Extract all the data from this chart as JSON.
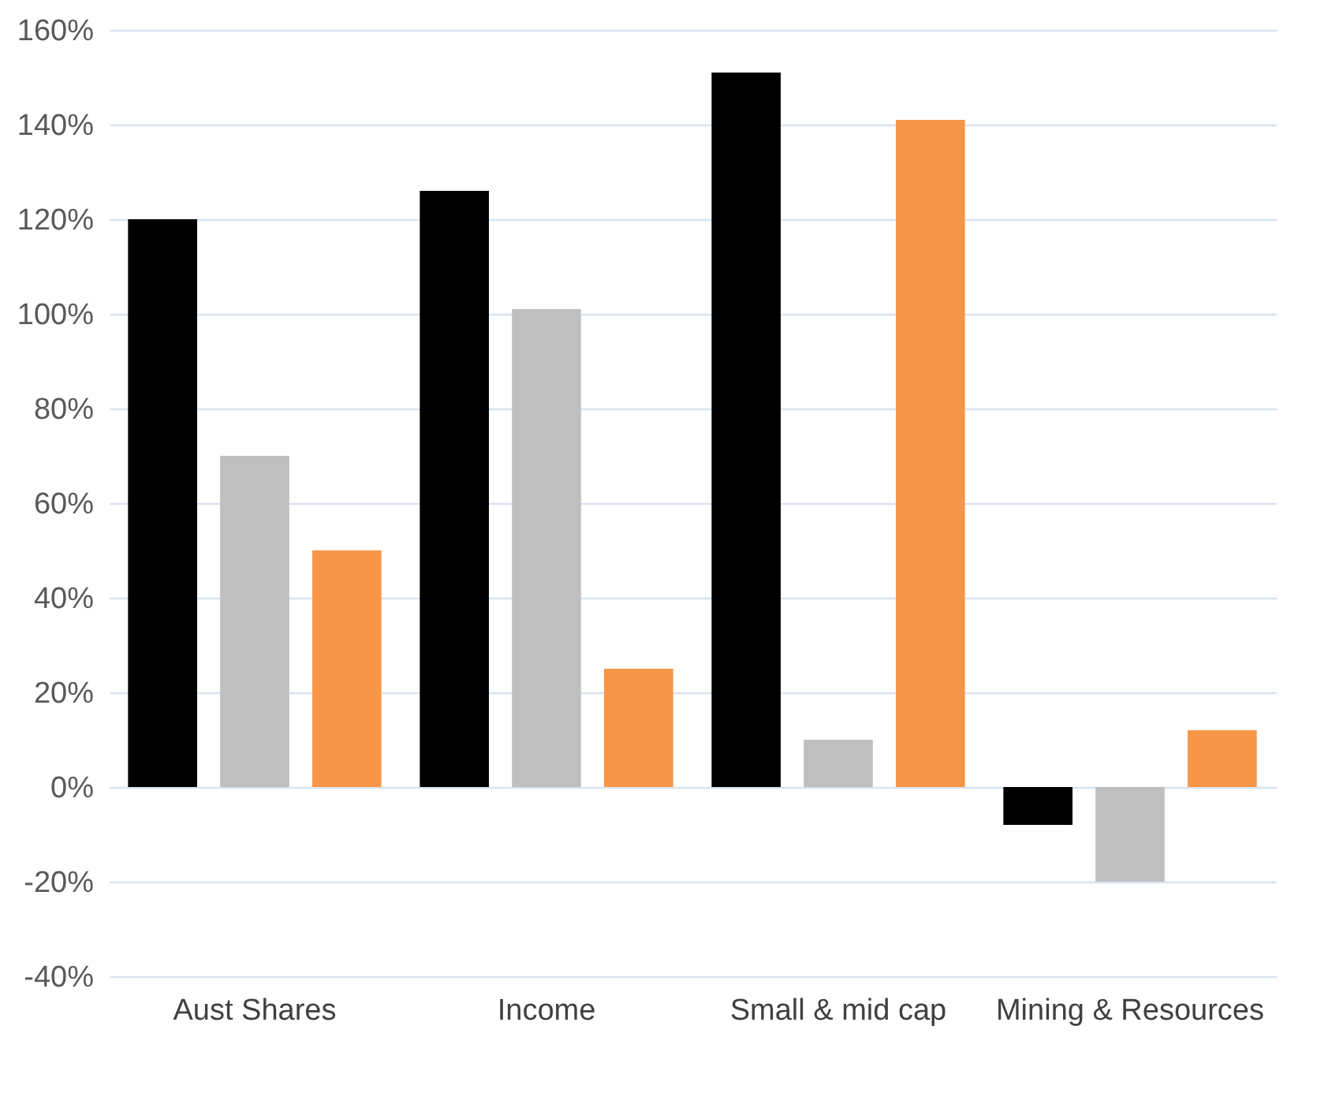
{
  "chart_data": {
    "type": "bar",
    "categories": [
      "Aust Shares",
      "Income",
      "Small & mid cap",
      "Mining & Resources"
    ],
    "series": [
      {
        "color": "#000000",
        "values": [
          120,
          126,
          151,
          -8
        ]
      },
      {
        "color": "#bfbfbf",
        "values": [
          70,
          101,
          10,
          -20
        ]
      },
      {
        "color": "#f79646",
        "values": [
          50,
          25,
          141,
          12
        ]
      }
    ],
    "ylim": [
      -40,
      160
    ],
    "yticks": [
      {
        "value": -40,
        "label": "-40%"
      },
      {
        "value": -20,
        "label": "-20%"
      },
      {
        "value": 0,
        "label": "0%"
      },
      {
        "value": 20,
        "label": "20%"
      },
      {
        "value": 40,
        "label": "40%"
      },
      {
        "value": 60,
        "label": "60%"
      },
      {
        "value": 80,
        "label": "80%"
      },
      {
        "value": 100,
        "label": "100%"
      },
      {
        "value": 120,
        "label": "120%"
      },
      {
        "value": 140,
        "label": "140%"
      },
      {
        "value": 160,
        "label": "160%"
      }
    ],
    "grid": "y"
  }
}
